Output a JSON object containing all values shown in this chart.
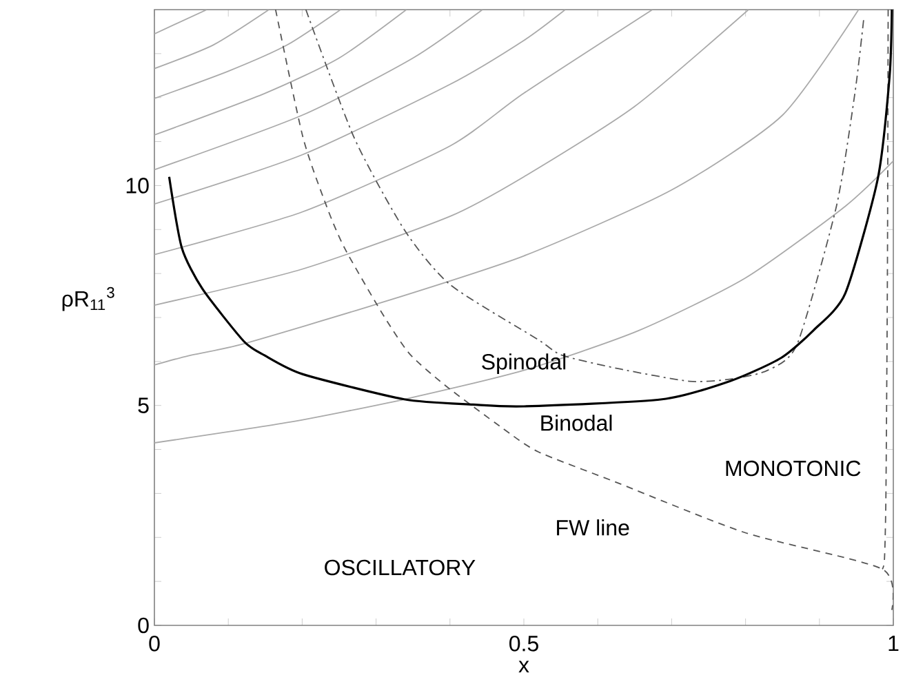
{
  "chart_data": {
    "type": "line",
    "xlabel": "x",
    "ylabel": "ρR$_{11}$$^{3}$",
    "xlim": [
      0,
      1
    ],
    "ylim": [
      0,
      14
    ],
    "xticks": [
      0,
      {
        "value": 0.1,
        "label": null
      },
      {
        "value": 0.2,
        "label": null
      },
      {
        "value": 0.3,
        "label": null
      },
      {
        "value": 0.4,
        "label": null
      },
      0.5,
      {
        "value": 0.6,
        "label": null
      },
      {
        "value": 0.7,
        "label": null
      },
      {
        "value": 0.8,
        "label": null
      },
      {
        "value": 0.9,
        "label": null
      },
      1
    ],
    "yticks": [
      0,
      {
        "value": 1,
        "label": null
      },
      {
        "value": 2,
        "label": null
      },
      {
        "value": 3,
        "label": null
      },
      {
        "value": 4,
        "label": null
      },
      5,
      {
        "value": 6,
        "label": null
      },
      {
        "value": 7,
        "label": null
      },
      {
        "value": 8,
        "label": null
      },
      {
        "value": 9,
        "label": null
      },
      10,
      {
        "value": 11,
        "label": null
      },
      {
        "value": 12,
        "label": null
      },
      {
        "value": 13,
        "label": null
      }
    ],
    "series": [
      {
        "color": "#aaaaaa",
        "line_style": "solid",
        "x": [
          0,
          0.183,
          0.338,
          0.5,
          0.655,
          0.8,
          0.935,
          1
        ],
        "values": [
          4.15,
          4.62,
          5.14,
          5.8,
          6.7,
          7.9,
          9.53,
          10.56
        ]
      },
      {
        "color": "#aaaaaa",
        "line_style": "solid",
        "x": [
          0,
          0.046,
          0.12,
          0.3,
          0.5,
          0.7,
          0.85,
          0.953
        ],
        "values": [
          5.92,
          6.13,
          6.4,
          7.3,
          8.4,
          9.9,
          11.6,
          14
        ]
      },
      {
        "color": "#aaaaaa",
        "line_style": "solid",
        "x": [
          0,
          0.2,
          0.4,
          0.5,
          0.65,
          0.804
        ],
        "values": [
          7.28,
          8.1,
          9.3,
          10.2,
          11.8,
          14
        ]
      },
      {
        "color": "#aaaaaa",
        "line_style": "solid",
        "x": [
          0,
          0.2,
          0.4,
          0.5,
          0.674
        ],
        "values": [
          8.43,
          9.4,
          10.9,
          12.1,
          14
        ]
      },
      {
        "color": "#aaaaaa",
        "line_style": "solid",
        "x": [
          0,
          0.2,
          0.4,
          0.5,
          0.556
        ],
        "values": [
          9.58,
          10.7,
          12.3,
          13.3,
          14
        ]
      },
      {
        "color": "#aaaaaa",
        "line_style": "solid",
        "x": [
          0,
          0.2,
          0.35,
          0.444
        ],
        "values": [
          10.36,
          11.6,
          12.9,
          14
        ]
      },
      {
        "color": "#aaaaaa",
        "line_style": "solid",
        "x": [
          0,
          0.15,
          0.25,
          0.341
        ],
        "values": [
          11.15,
          12.1,
          12.9,
          14
        ]
      },
      {
        "color": "#aaaaaa",
        "line_style": "solid",
        "x": [
          0,
          0.1,
          0.18,
          0.252
        ],
        "values": [
          11.98,
          12.6,
          13.2,
          14
        ]
      },
      {
        "color": "#aaaaaa",
        "line_style": "solid",
        "x": [
          0,
          0.08,
          0.155
        ],
        "values": [
          12.66,
          13.2,
          14
        ]
      },
      {
        "color": "#aaaaaa",
        "line_style": "solid",
        "x": [
          0,
          0.071
        ],
        "values": [
          13.45,
          14
        ]
      },
      {
        "color": "#555555",
        "line_style": "dashed",
        "x": [
          0.164,
          0.201,
          0.233,
          0.257,
          0.307,
          0.345,
          0.394,
          0.469,
          0.519,
          0.624,
          0.799,
          0.985,
          0.998
        ],
        "values": [
          14,
          11.1,
          9.53,
          8.59,
          7.13,
          6.18,
          5.45,
          4.51,
          3.95,
          3.26,
          2.11,
          1.28,
          0.35
        ]
      },
      {
        "color": "#555555",
        "line_style": "dashed",
        "x": [
          0.993,
          0.992,
          0.99,
          0.988,
          0.985
        ],
        "values": [
          14,
          8,
          3,
          1.5,
          1.28
        ]
      },
      {
        "color": "#555555",
        "line_style": "dashdot",
        "x": [
          0.205,
          0.27,
          0.338,
          0.4,
          0.519,
          0.552,
          0.63,
          0.724,
          0.78,
          0.83,
          0.87,
          0.923,
          0.948,
          0.96
        ],
        "values": [
          14,
          11.1,
          9.0,
          7.75,
          6.5,
          6.14,
          5.83,
          5.55,
          5.6,
          5.8,
          6.4,
          9.53,
          12.1,
          13.8
        ]
      },
      {
        "color": "#000000",
        "line_style": "solid",
        "x": [
          0.02,
          0.037,
          0.065,
          0.121,
          0.149,
          0.201,
          0.338,
          0.431,
          0.5,
          0.687,
          0.78,
          0.848,
          0.892,
          0.935,
          0.979,
          0.995,
          0.998
        ],
        "values": [
          10.2,
          8.59,
          7.65,
          6.46,
          6.14,
          5.71,
          5.14,
          5.02,
          4.98,
          5.14,
          5.56,
          6.08,
          6.71,
          7.55,
          10.16,
          12.5,
          14
        ]
      }
    ],
    "annotations": [
      {
        "text": "Spinodal",
        "x": 0.5,
        "y": 5.95
      },
      "Binodal",
      "MONOTONIC",
      "FW line",
      "OSCILLATORY"
    ]
  }
}
